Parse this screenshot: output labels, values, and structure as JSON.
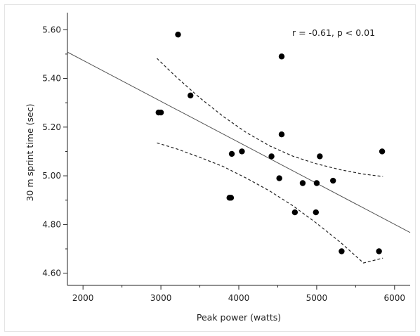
{
  "chart_data": {
    "type": "scatter",
    "xlabel": "Peak power (watts)",
    "ylabel": "30 m sprint time (sec)",
    "xlim": [
      1800,
      6200
    ],
    "ylim": [
      4.55,
      5.67
    ],
    "x_ticks": [
      2000,
      3000,
      4000,
      5000,
      6000
    ],
    "x_tick_labels": [
      "2000",
      "3000",
      "4000",
      "5000",
      "6000"
    ],
    "y_ticks": [
      4.6,
      4.8,
      5.0,
      5.2,
      5.4,
      5.6
    ],
    "y_tick_labels": [
      "4.60",
      "4.80",
      "5.00",
      "5.20",
      "5.40",
      "5.60"
    ],
    "annotation": "r = -0.61, p < 0.01",
    "grid": false,
    "points": [
      {
        "x": 2970,
        "y": 5.26
      },
      {
        "x": 3000,
        "y": 5.26
      },
      {
        "x": 3220,
        "y": 5.58
      },
      {
        "x": 3380,
        "y": 5.33
      },
      {
        "x": 3880,
        "y": 4.91
      },
      {
        "x": 3900,
        "y": 4.91
      },
      {
        "x": 3910,
        "y": 5.09
      },
      {
        "x": 4040,
        "y": 5.1
      },
      {
        "x": 4420,
        "y": 5.08
      },
      {
        "x": 4520,
        "y": 4.99
      },
      {
        "x": 4550,
        "y": 5.49
      },
      {
        "x": 4550,
        "y": 5.17
      },
      {
        "x": 4720,
        "y": 4.85
      },
      {
        "x": 4820,
        "y": 4.97
      },
      {
        "x": 4990,
        "y": 4.85
      },
      {
        "x": 5000,
        "y": 4.97
      },
      {
        "x": 5040,
        "y": 5.08
      },
      {
        "x": 5210,
        "y": 4.98
      },
      {
        "x": 5320,
        "y": 4.69
      },
      {
        "x": 5800,
        "y": 4.69
      },
      {
        "x": 5840,
        "y": 5.1
      }
    ],
    "regression_line": {
      "x": [
        1800,
        6200
      ],
      "y": [
        5.508,
        4.767
      ]
    },
    "confidence_band_upper": {
      "x": [
        2950,
        3200,
        3500,
        3800,
        4100,
        4400,
        4700,
        5000,
        5300,
        5600,
        5850
      ],
      "y": [
        5.482,
        5.405,
        5.32,
        5.244,
        5.177,
        5.122,
        5.08,
        5.049,
        5.025,
        5.007,
        4.997
      ]
    },
    "confidence_band_lower": {
      "x": [
        2950,
        3200,
        3500,
        3800,
        4100,
        4400,
        4700,
        5000,
        5300,
        5600,
        5850
      ],
      "y": [
        5.135,
        5.111,
        5.076,
        5.038,
        4.99,
        4.937,
        4.876,
        4.805,
        4.728,
        4.642,
        4.662
      ]
    }
  }
}
